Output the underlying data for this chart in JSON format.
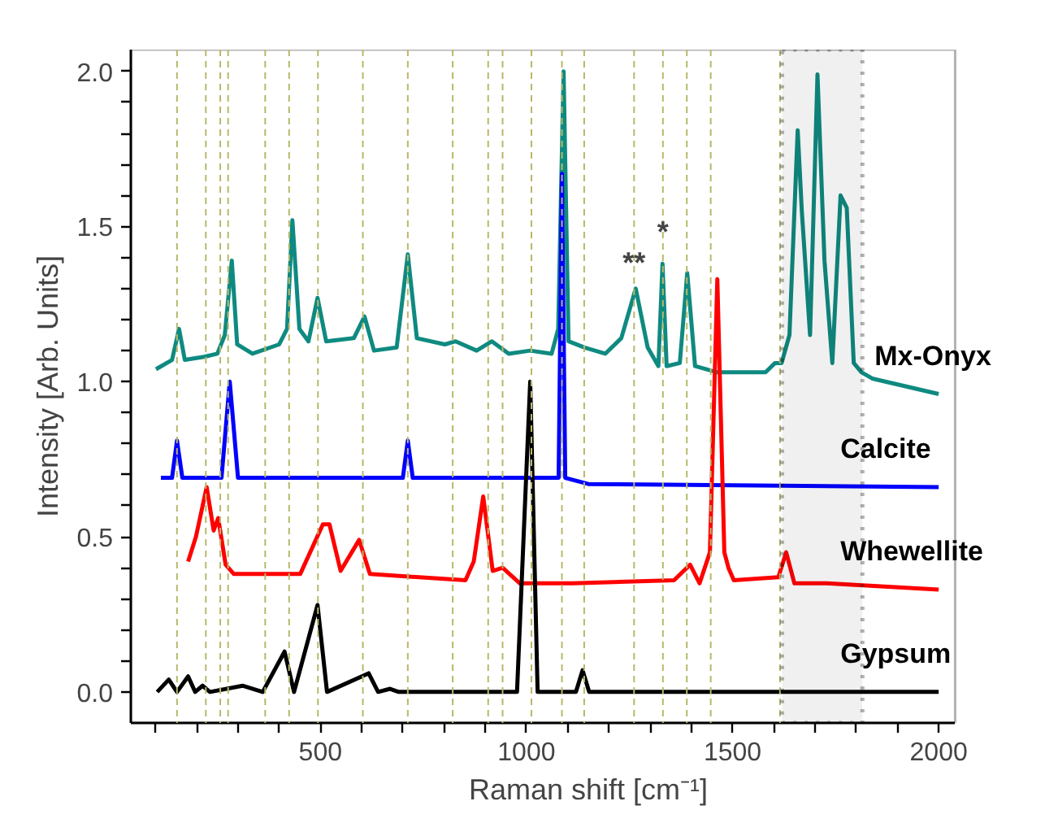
{
  "chart_data": {
    "type": "line",
    "xlabel": "Raman shift [cm⁻¹]",
    "ylabel": "Intensity [Arb. Units]",
    "xlim": [
      40,
      2040
    ],
    "ylim": [
      -0.1,
      2.07
    ],
    "xticks": [
      {
        "value": 100,
        "label": null
      },
      {
        "value": 200,
        "label": null
      },
      {
        "value": 300,
        "label": null
      },
      {
        "value": 400,
        "label": null
      },
      500,
      {
        "value": 600,
        "label": null
      },
      {
        "value": 700,
        "label": null
      },
      {
        "value": 800,
        "label": null
      },
      {
        "value": 900,
        "label": null
      },
      1000,
      {
        "value": 1100,
        "label": null
      },
      {
        "value": 1200,
        "label": null
      },
      {
        "value": 1300,
        "label": null
      },
      {
        "value": 1400,
        "label": null
      },
      1500,
      {
        "value": 1600,
        "label": null
      },
      {
        "value": 1700,
        "label": null
      },
      {
        "value": 1800,
        "label": null
      },
      {
        "value": 1900,
        "label": null
      },
      2000
    ],
    "yticks": [
      {
        "value": 0,
        "label": "0.0"
      },
      {
        "value": 0.1,
        "label": null
      },
      {
        "value": 0.2,
        "label": null
      },
      {
        "value": 0.3,
        "label": null
      },
      {
        "value": 0.4,
        "label": null
      },
      0.5,
      {
        "value": 0.6,
        "label": null
      },
      {
        "value": 0.7,
        "label": null
      },
      {
        "value": 0.8,
        "label": null
      },
      {
        "value": 0.9,
        "label": null
      },
      {
        "value": 1,
        "label": "1.0"
      },
      {
        "value": 1.1,
        "label": null
      },
      {
        "value": 1.2,
        "label": null
      },
      {
        "value": 1.3,
        "label": null
      },
      {
        "value": 1.4,
        "label": null
      },
      1.5,
      {
        "value": 1.6,
        "label": null
      },
      {
        "value": 1.7,
        "label": null
      },
      {
        "value": 1.8,
        "label": null
      },
      {
        "value": 1.9,
        "label": null
      },
      {
        "value": 2,
        "label": "2.0"
      }
    ],
    "grid": false,
    "marker": "none",
    "line_style": "solid",
    "series": [
      {
        "name": "Mx-Onyx",
        "color": "#0f8a80",
        "x": [
          101,
          140,
          157,
          171,
          218,
          250,
          268,
          285,
          298,
          335,
          400,
          419,
          432,
          449,
          471,
          493,
          514,
          581,
          607,
          630,
          685,
          712,
          734,
          802,
          828,
          879,
          916,
          957,
          1009,
          1061,
          1077,
          1090,
          1102,
          1141,
          1191,
          1230,
          1265,
          1294,
          1320,
          1330,
          1340,
          1372,
          1390,
          1409,
          1463,
          1580,
          1603,
          1619,
          1638,
          1658,
          1668,
          1688,
          1706,
          1723,
          1742,
          1762,
          1777,
          1794,
          1813,
          1839,
          2000
        ],
        "values": [
          1.04,
          1.07,
          1.17,
          1.07,
          1.08,
          1.09,
          1.15,
          1.39,
          1.12,
          1.09,
          1.12,
          1.17,
          1.52,
          1.17,
          1.13,
          1.27,
          1.13,
          1.14,
          1.21,
          1.1,
          1.11,
          1.41,
          1.14,
          1.12,
          1.13,
          1.1,
          1.13,
          1.09,
          1.1,
          1.09,
          1.17,
          2.0,
          1.13,
          1.11,
          1.09,
          1.14,
          1.3,
          1.11,
          1.05,
          1.38,
          1.05,
          1.06,
          1.35,
          1.05,
          1.03,
          1.03,
          1.06,
          1.06,
          1.15,
          1.81,
          1.55,
          1.15,
          1.99,
          1.39,
          1.06,
          1.6,
          1.56,
          1.06,
          1.03,
          1.01,
          0.96
        ]
      },
      {
        "name": "Calcite",
        "color": "#0000ff",
        "x": [
          113,
          140,
          152,
          165,
          260,
          280,
          300,
          700,
          712,
          724,
          1078,
          1086,
          1094,
          1150,
          2000
        ],
        "values": [
          0.69,
          0.69,
          0.81,
          0.69,
          0.69,
          1.0,
          0.69,
          0.69,
          0.81,
          0.69,
          0.69,
          1.67,
          0.69,
          0.67,
          0.66
        ]
      },
      {
        "name": "Whewellite",
        "color": "#ff0000",
        "x": [
          179,
          198,
          224,
          241,
          252,
          270,
          290,
          451,
          506,
          522,
          549,
          594,
          620,
          852,
          872,
          895,
          918,
          942,
          984,
          1113,
          1358,
          1397,
          1420,
          1445,
          1463,
          1480,
          1490,
          1503,
          1611,
          1630,
          1650,
          1728,
          2000
        ],
        "values": [
          0.42,
          0.5,
          0.66,
          0.52,
          0.56,
          0.41,
          0.38,
          0.38,
          0.54,
          0.54,
          0.39,
          0.49,
          0.38,
          0.36,
          0.42,
          0.63,
          0.39,
          0.4,
          0.35,
          0.35,
          0.36,
          0.41,
          0.35,
          0.45,
          1.33,
          0.45,
          0.4,
          0.36,
          0.37,
          0.45,
          0.35,
          0.35,
          0.33
        ]
      },
      {
        "name": "Gypsum",
        "color": "#000000",
        "x": [
          104,
          132,
          152,
          179,
          196,
          214,
          232,
          311,
          360,
          413,
          436,
          493,
          516,
          617,
          640,
          669,
          690,
          977,
          1009,
          1027,
          1120,
          1136,
          1152,
          1275,
          2000
        ],
        "values": [
          0.0,
          0.04,
          0.0,
          0.05,
          0.0,
          0.02,
          0.0,
          0.02,
          0.0,
          0.13,
          0.0,
          0.28,
          0.0,
          0.06,
          0.0,
          0.01,
          0.0,
          0.0,
          1.0,
          0.0,
          0.0,
          0.07,
          0.0,
          0.0,
          0.0
        ]
      }
    ],
    "ref_lines": [
      {
        "axis": "x",
        "value": 152,
        "color": "#b8b86a",
        "line_style": "dashed"
      },
      {
        "axis": "x",
        "value": 222,
        "color": "#b8b86a",
        "line_style": "dashed"
      },
      {
        "axis": "x",
        "value": 257,
        "color": "#b8b86a",
        "line_style": "dashed"
      },
      {
        "axis": "x",
        "value": 276,
        "color": "#b8b86a",
        "line_style": "dashed"
      },
      {
        "axis": "x",
        "value": 366,
        "color": "#b8b86a",
        "line_style": "dashed"
      },
      {
        "axis": "x",
        "value": 424,
        "color": "#b8b86a",
        "line_style": "dashed"
      },
      {
        "axis": "x",
        "value": 494,
        "color": "#b8b86a",
        "line_style": "dashed"
      },
      {
        "axis": "x",
        "value": 603,
        "color": "#b8b86a",
        "line_style": "dashed"
      },
      {
        "axis": "x",
        "value": 712,
        "color": "#b8b86a",
        "line_style": "dashed"
      },
      {
        "axis": "x",
        "value": 821,
        "color": "#b8b86a",
        "line_style": "dashed"
      },
      {
        "axis": "x",
        "value": 907,
        "color": "#b8b86a",
        "line_style": "dashed"
      },
      {
        "axis": "x",
        "value": 942,
        "color": "#b8b86a",
        "line_style": "dashed"
      },
      {
        "axis": "x",
        "value": 1012,
        "color": "#b8b86a",
        "line_style": "dashed"
      },
      {
        "axis": "x",
        "value": 1086,
        "color": "#b8b86a",
        "line_style": "dashed"
      },
      {
        "axis": "x",
        "value": 1140,
        "color": "#b8b86a",
        "line_style": "dashed"
      },
      {
        "axis": "x",
        "value": 1261,
        "color": "#b8b86a",
        "line_style": "dashed"
      },
      {
        "axis": "x",
        "value": 1331,
        "color": "#b8b86a",
        "line_style": "dashed"
      },
      {
        "axis": "x",
        "value": 1389,
        "color": "#b8b86a",
        "line_style": "dashed"
      },
      {
        "axis": "x",
        "value": 1447,
        "color": "#b8b86a",
        "line_style": "dashed"
      },
      {
        "axis": "x",
        "value": 1615,
        "color": "#b8b86a",
        "line_style": "dashed"
      }
    ],
    "bands": [
      {
        "axis": "x",
        "from": 1620,
        "to": 1815,
        "color": "#000000"
      }
    ],
    "annotations": [
      {
        "text": "**",
        "x": 1261,
        "y": 1.33
      },
      {
        "text": "*",
        "x": 1331,
        "y": 1.43
      }
    ]
  }
}
